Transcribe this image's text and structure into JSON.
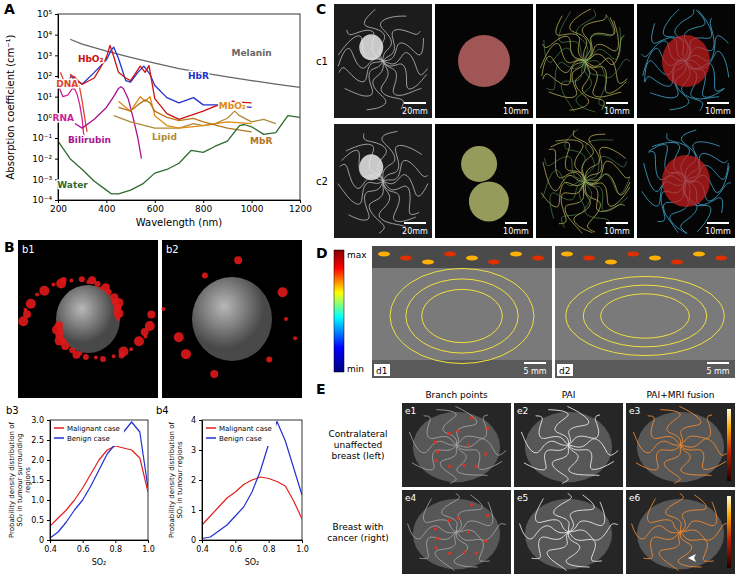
{
  "chart_data": [
    {
      "type": "line",
      "x_label": "Wavelength (nm)",
      "y_label": "Absorption coefficient (cm⁻¹)",
      "log": "y",
      "xlim": [
        200,
        1200
      ],
      "xticks": [
        200,
        400,
        600,
        800,
        1000,
        1200
      ],
      "ylim": [
        0.0001,
        100000
      ],
      "yticks": [
        {
          "value": 0.0001,
          "label": "10⁻⁴"
        },
        {
          "value": 0.001,
          "label": "10⁻³"
        },
        {
          "value": 0.01,
          "label": "10⁻²"
        },
        {
          "value": 0.1,
          "label": "10⁻¹"
        },
        {
          "value": 1,
          "label": "10⁰"
        },
        {
          "value": 10,
          "label": "10¹"
        },
        {
          "value": 100,
          "label": "10²"
        },
        {
          "value": 1000,
          "label": "10³"
        },
        {
          "value": 10000,
          "label": "10⁴"
        },
        {
          "value": 100000,
          "label": "10⁵"
        }
      ],
      "series": [
        {
          "name": "Melanin",
          "color": "#666666",
          "x": [
            250,
            300,
            400,
            500,
            600,
            700,
            800,
            900,
            1000,
            1100,
            1200
          ],
          "values": [
            6000,
            3500,
            1600,
            800,
            420,
            230,
            140,
            90,
            60,
            40,
            28
          ]
        },
        {
          "name": "HbR",
          "color": "#2233cc",
          "x": [
            250,
            300,
            350,
            400,
            420,
            430,
            450,
            480,
            500,
            530,
            555,
            580,
            600,
            650,
            700,
            760,
            800,
            850,
            900,
            950,
            1000
          ],
          "values": [
            100,
            40,
            150,
            600,
            1800,
            2500,
            700,
            60,
            50,
            150,
            300,
            120,
            35,
            9,
            5,
            9,
            4,
            4,
            4,
            3.5,
            3
          ]
        },
        {
          "name": "HbO₂",
          "color": "#cc1111",
          "x": [
            250,
            300,
            350,
            400,
            415,
            430,
            450,
            480,
            500,
            540,
            560,
            576,
            600,
            650,
            700,
            800,
            850,
            900,
            920,
            950,
            1000
          ],
          "values": [
            120,
            40,
            80,
            800,
            3000,
            900,
            150,
            80,
            60,
            300,
            150,
            320,
            8,
            1.5,
            0.8,
            2,
            3.5,
            5,
            6,
            5.5,
            5
          ]
        },
        {
          "name": "DNA",
          "color": "#e0442a",
          "x": [
            210,
            230,
            250,
            260,
            270,
            280,
            290,
            300,
            310,
            320
          ],
          "values": [
            150,
            40,
            80,
            100,
            90,
            60,
            25,
            6,
            1,
            0.2
          ]
        },
        {
          "name": "RNA",
          "color": "#d0209a",
          "x": [
            200,
            220,
            240,
            260,
            270,
            280,
            290,
            300,
            305,
            310
          ],
          "values": [
            40,
            10,
            12,
            25,
            22,
            12,
            4,
            0.8,
            0.2,
            0.05
          ]
        },
        {
          "name": "Bilirubin",
          "color": "#a8148f",
          "x": [
            270,
            300,
            350,
            400,
            430,
            450,
            460,
            470,
            490,
            510,
            530,
            545
          ],
          "values": [
            0.5,
            0.3,
            0.8,
            3,
            10,
            25,
            30,
            25,
            8,
            1,
            0.1,
            0.01
          ]
        },
        {
          "name": "Lipid",
          "color": "#b08a3a",
          "x": [
            430,
            500,
            600,
            700,
            760,
            800,
            850,
            900,
            930,
            950,
            1000,
            1050,
            1100
          ],
          "values": [
            1.2,
            0.6,
            0.3,
            0.3,
            0.5,
            0.4,
            0.5,
            0.9,
            2,
            1.2,
            0.6,
            0.8,
            0.5
          ]
        },
        {
          "name": "MbO₂",
          "color": "#e08a10",
          "x": [
            450,
            480,
            500,
            540,
            560,
            580,
            600,
            650,
            700,
            800,
            900,
            1000
          ],
          "values": [
            6,
            3,
            2,
            10,
            6,
            10,
            1.2,
            0.4,
            0.3,
            0.4,
            0.6,
            0.5
          ]
        },
        {
          "name": "MbR",
          "color": "#b8741c",
          "x": [
            450,
            500,
            530,
            560,
            580,
            600,
            650,
            700,
            760,
            800,
            900,
            1000
          ],
          "values": [
            3,
            2,
            4,
            7,
            5,
            2,
            1,
            0.7,
            0.9,
            0.6,
            0.3,
            0.2
          ]
        },
        {
          "name": "Water",
          "color": "#2e6b2e",
          "x": [
            200,
            250,
            300,
            350,
            400,
            420,
            450,
            500,
            550,
            600,
            650,
            700,
            750,
            800,
            850,
            900,
            950,
            970,
            1000,
            1050,
            1100,
            1150,
            1200
          ],
          "values": [
            0.07,
            0.01,
            0.003,
            0.0008,
            0.0003,
            0.0002,
            0.0002,
            0.0003,
            0.0006,
            0.002,
            0.003,
            0.006,
            0.025,
            0.02,
            0.04,
            0.07,
            0.4,
            0.45,
            0.35,
            0.15,
            0.18,
            1.2,
            1.0
          ]
        }
      ]
    },
    {
      "type": "line",
      "x_label": "SO₂",
      "y_label": "Probability density distribution of SO₂ in tumour surrounding regions",
      "xlim": [
        0.4,
        1.0
      ],
      "xticks": [
        0.4,
        0.6,
        0.8,
        {
          "value": 1,
          "label": "1.0"
        }
      ],
      "ylim": [
        0,
        3
      ],
      "yticks": [
        0,
        0.5,
        {
          "value": 1,
          "label": "1.0"
        },
        1.5,
        {
          "value": 2,
          "label": "2.0"
        },
        2.5,
        {
          "value": 3,
          "label": "3.0"
        }
      ],
      "legend": "upper left",
      "x": [
        0.4,
        0.45,
        0.5,
        0.55,
        0.6,
        0.65,
        0.7,
        0.75,
        0.8,
        0.85,
        0.9,
        0.95,
        1.0
      ],
      "series": [
        {
          "name": "Malignant case",
          "color": "#e02020",
          "values": [
            0.35,
            0.55,
            0.75,
            1.0,
            1.3,
            1.65,
            2.0,
            2.25,
            2.35,
            2.3,
            2.25,
            2.05,
            1.2
          ]
        },
        {
          "name": "Benign case",
          "color": "#2030d0",
          "values": [
            0.05,
            0.2,
            0.45,
            0.75,
            1.0,
            1.35,
            1.75,
            2.15,
            2.4,
            2.7,
            2.95,
            2.7,
            1.3
          ]
        }
      ]
    },
    {
      "type": "line",
      "x_label": "SO₂",
      "y_label": "Probability density distribution of SO₂ in tumour regions",
      "xlim": [
        0.4,
        1.0
      ],
      "xticks": [
        0.4,
        0.6,
        0.8,
        {
          "value": 1,
          "label": "1.0"
        }
      ],
      "ylim": [
        0,
        4
      ],
      "yticks": [
        0,
        1,
        2,
        3,
        4
      ],
      "legend": "upper left",
      "x": [
        0.4,
        0.45,
        0.5,
        0.55,
        0.6,
        0.65,
        0.7,
        0.75,
        0.8,
        0.85,
        0.9,
        0.95,
        1.0
      ],
      "series": [
        {
          "name": "Malignant case",
          "color": "#e02020",
          "values": [
            0.5,
            0.8,
            1.1,
            1.4,
            1.6,
            1.85,
            2.0,
            2.1,
            2.05,
            1.95,
            1.8,
            1.3,
            0.7
          ]
        },
        {
          "name": "Benign case",
          "color": "#2030d0",
          "values": [
            0.05,
            0.1,
            0.3,
            0.5,
            0.8,
            1.1,
            1.6,
            2.3,
            3.2,
            3.95,
            3.3,
            2.4,
            1.5
          ]
        }
      ]
    }
  ],
  "figure": {
    "panel_labels": [
      "A",
      "B",
      "C",
      "D",
      "E"
    ],
    "B": {
      "image_labels": [
        "b1",
        "b2"
      ],
      "chart_labels": [
        "b3",
        "b4"
      ]
    },
    "C": {
      "rows": [
        {
          "label": "c1",
          "scale_bars": [
            "20mm",
            "10mm",
            "10mm",
            "10mm"
          ]
        },
        {
          "label": "c2",
          "scale_bars": [
            "20mm",
            "10mm",
            "10mm",
            "10mm"
          ]
        }
      ]
    },
    "D": {
      "colorbar": {
        "max_label": "max",
        "min_label": "min"
      },
      "images": [
        {
          "label": "d1",
          "scale_bar": "5 mm"
        },
        {
          "label": "d2",
          "scale_bar": "5 mm"
        }
      ]
    },
    "E": {
      "columns": [
        "Branch points",
        "PAI",
        "PAI+MRI fusion"
      ],
      "rows": [
        {
          "label": "Contralateral unaffected breast (left)",
          "images": [
            "e1",
            "e2",
            "e3"
          ]
        },
        {
          "label": "Breast with cancer (right)",
          "images": [
            "e4",
            "e5",
            "e6"
          ]
        }
      ]
    }
  }
}
